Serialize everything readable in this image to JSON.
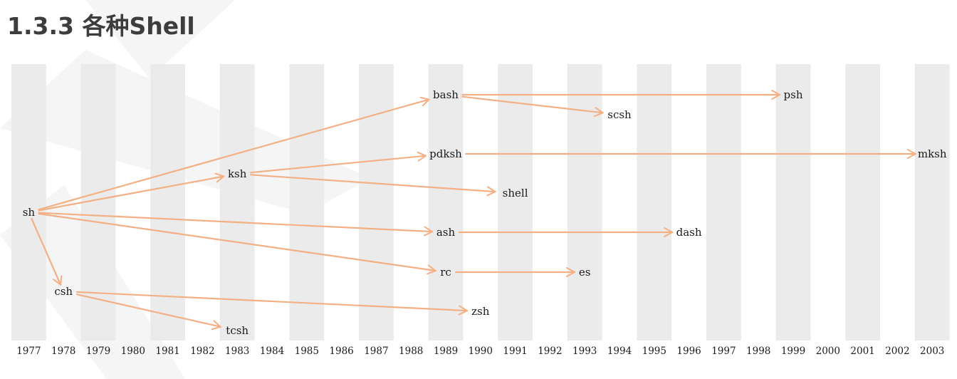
{
  "title": "1.3.3 各种Shell",
  "colors": {
    "arrow": "#f4b085",
    "stripe": "#ebebeb",
    "text": "#1a1a1a",
    "title": "#3d3d3d"
  },
  "years": [
    "1977",
    "1978",
    "1979",
    "1980",
    "1981",
    "1982",
    "1983",
    "1984",
    "1985",
    "1986",
    "1987",
    "1988",
    "1989",
    "1990",
    "1991",
    "1992",
    "1993",
    "1994",
    "1995",
    "1996",
    "1997",
    "1998",
    "1999",
    "2000",
    "2001",
    "2002",
    "2003"
  ],
  "nodes": [
    {
      "id": "sh",
      "label": "sh",
      "year": 1977
    },
    {
      "id": "csh",
      "label": "csh",
      "year": 1978
    },
    {
      "id": "ksh",
      "label": "ksh",
      "year": 1983
    },
    {
      "id": "tcsh",
      "label": "tcsh",
      "year": 1983
    },
    {
      "id": "bash",
      "label": "bash",
      "year": 1989
    },
    {
      "id": "pdksh",
      "label": "pdksh",
      "year": 1989
    },
    {
      "id": "ash",
      "label": "ash",
      "year": 1989
    },
    {
      "id": "rc",
      "label": "rc",
      "year": 1989
    },
    {
      "id": "zsh",
      "label": "zsh",
      "year": 1990
    },
    {
      "id": "shell",
      "label": "shell",
      "year": 1991
    },
    {
      "id": "es",
      "label": "es",
      "year": 1993
    },
    {
      "id": "scsh",
      "label": "scsh",
      "year": 1994
    },
    {
      "id": "dash",
      "label": "dash",
      "year": 1996
    },
    {
      "id": "psh",
      "label": "psh",
      "year": 1999
    },
    {
      "id": "mksh",
      "label": "mksh",
      "year": 2003
    }
  ],
  "edges": [
    {
      "from": "sh",
      "to": "bash"
    },
    {
      "from": "sh",
      "to": "ksh"
    },
    {
      "from": "sh",
      "to": "ash"
    },
    {
      "from": "sh",
      "to": "rc"
    },
    {
      "from": "sh",
      "to": "csh"
    },
    {
      "from": "csh",
      "to": "zsh"
    },
    {
      "from": "csh",
      "to": "tcsh"
    },
    {
      "from": "ksh",
      "to": "pdksh"
    },
    {
      "from": "ksh",
      "to": "shell"
    },
    {
      "from": "bash",
      "to": "psh"
    },
    {
      "from": "bash",
      "to": "scsh"
    },
    {
      "from": "pdksh",
      "to": "mksh"
    },
    {
      "from": "ash",
      "to": "dash"
    },
    {
      "from": "rc",
      "to": "es"
    }
  ]
}
